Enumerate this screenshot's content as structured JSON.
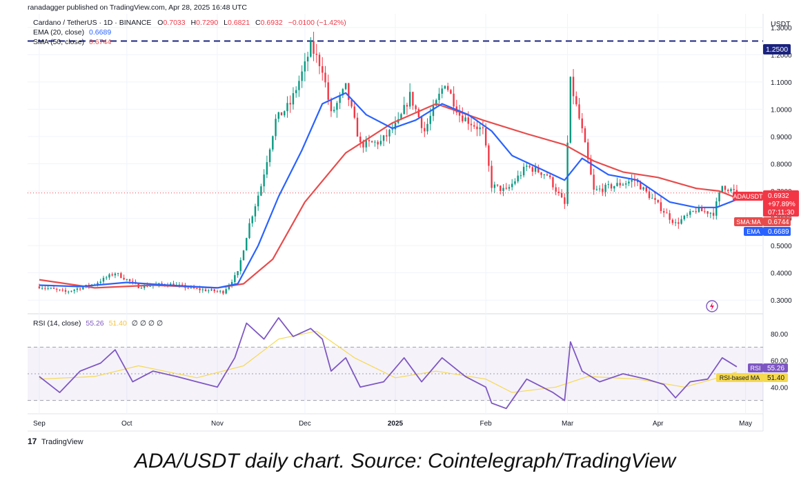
{
  "header": {
    "published_by": "ranadagger published on TradingView.com, Apr 28, 2025 16:48 UTC"
  },
  "legend": {
    "symbol": "Cardano / TetherUS · 1D · BINANCE",
    "o_label": "O",
    "o_value": "0.7033",
    "h_label": "H",
    "h_value": "0.7290",
    "l_label": "L",
    "l_value": "0.6821",
    "c_label": "C",
    "c_value": "0.6932",
    "change": "−0.0100 (−1.42%)",
    "ema_label": "EMA (20, close)",
    "ema_value": "0.6689",
    "sma_label": "SMA (50, close)",
    "sma_value": "0.6744",
    "rsi_label": "RSI (14, close)",
    "rsi_value": "55.26",
    "rsi_ma_value": "51.40",
    "rsi_zeros": "∅ ∅ ∅ ∅"
  },
  "price_axis": {
    "currency": "USDT",
    "ticks": [
      "1.3000",
      "1.2000",
      "1.1000",
      "1.0000",
      "0.9000",
      "0.8000",
      "0.7000",
      "0.6000",
      "0.5000",
      "0.4000",
      "0.3000"
    ],
    "hline_label": "1.2500",
    "price_tag_symbol": "ADAUSDT",
    "price_tag_value": "0.6932",
    "price_tag_change": "+97.89%",
    "price_tag_countdown": "07:11:30",
    "sma_tag_label": "SMA:MA",
    "sma_tag_value": "0.6744",
    "ema_tag_label": "EMA",
    "ema_tag_value": "0.6689"
  },
  "rsi_axis": {
    "ticks": [
      "80.00",
      "60.00",
      "40.00"
    ],
    "rsi_tag_label": "RSI",
    "rsi_tag_value": "55.26",
    "rsi_ma_tag_label": "RSI-based MA",
    "rsi_ma_tag_value": "51.40"
  },
  "time_axis": {
    "ticks": [
      "Sep",
      "Oct",
      "Nov",
      "Dec",
      "2025",
      "Feb",
      "Mar",
      "Apr",
      "May"
    ]
  },
  "footer": {
    "logo_text": "TradingView",
    "logo_mark": "17"
  },
  "caption": "ADA/USDT daily chart. Source: Cointelegraph/TradingView",
  "colors": {
    "up": "#089981",
    "down": "#f23645",
    "ema": "#2962ff",
    "sma": "#e74c4c",
    "rsi": "#7e57c2",
    "rsi_ma": "#f5d94e",
    "hline": "#1a237e"
  },
  "chart_data": {
    "type": "candlestick",
    "symbol": "ADAUSDT",
    "timeframe": "1D",
    "price_range": [
      0.25,
      1.35
    ],
    "horizontal_line": 1.25,
    "last_close": 0.6932,
    "ema20_last": 0.6689,
    "sma50_last": 0.6744,
    "close_path": [
      {
        "x": "2024-09-01",
        "y": 0.35
      },
      {
        "x": "2024-09-10",
        "y": 0.33
      },
      {
        "x": "2024-09-20",
        "y": 0.36
      },
      {
        "x": "2024-09-27",
        "y": 0.4
      },
      {
        "x": "2024-10-05",
        "y": 0.35
      },
      {
        "x": "2024-10-15",
        "y": 0.36
      },
      {
        "x": "2024-10-25",
        "y": 0.34
      },
      {
        "x": "2024-11-03",
        "y": 0.33
      },
      {
        "x": "2024-11-08",
        "y": 0.4
      },
      {
        "x": "2024-11-12",
        "y": 0.58
      },
      {
        "x": "2024-11-16",
        "y": 0.72
      },
      {
        "x": "2024-11-21",
        "y": 0.96
      },
      {
        "x": "2024-11-26",
        "y": 1.02
      },
      {
        "x": "2024-12-01",
        "y": 1.16
      },
      {
        "x": "2024-12-03",
        "y": 1.23
      },
      {
        "x": "2024-12-07",
        "y": 1.15
      },
      {
        "x": "2024-12-10",
        "y": 0.98
      },
      {
        "x": "2024-12-15",
        "y": 1.08
      },
      {
        "x": "2024-12-20",
        "y": 0.87
      },
      {
        "x": "2024-12-27",
        "y": 0.88
      },
      {
        "x": "2025-01-02",
        "y": 0.95
      },
      {
        "x": "2025-01-06",
        "y": 1.05
      },
      {
        "x": "2025-01-11",
        "y": 0.92
      },
      {
        "x": "2025-01-18",
        "y": 1.1
      },
      {
        "x": "2025-01-23",
        "y": 0.98
      },
      {
        "x": "2025-01-31",
        "y": 0.92
      },
      {
        "x": "2025-02-03",
        "y": 0.72
      },
      {
        "x": "2025-02-08",
        "y": 0.7
      },
      {
        "x": "2025-02-15",
        "y": 0.79
      },
      {
        "x": "2025-02-22",
        "y": 0.76
      },
      {
        "x": "2025-02-28",
        "y": 0.65
      },
      {
        "x": "2025-03-02",
        "y": 1.1
      },
      {
        "x": "2025-03-06",
        "y": 0.92
      },
      {
        "x": "2025-03-10",
        "y": 0.7
      },
      {
        "x": "2025-03-17",
        "y": 0.72
      },
      {
        "x": "2025-03-24",
        "y": 0.74
      },
      {
        "x": "2025-03-31",
        "y": 0.66
      },
      {
        "x": "2025-04-07",
        "y": 0.58
      },
      {
        "x": "2025-04-14",
        "y": 0.63
      },
      {
        "x": "2025-04-20",
        "y": 0.62
      },
      {
        "x": "2025-04-23",
        "y": 0.72
      },
      {
        "x": "2025-04-28",
        "y": 0.6932
      }
    ],
    "ema20": [
      {
        "x": "2024-09-01",
        "y": 0.355
      },
      {
        "x": "2024-09-15",
        "y": 0.35
      },
      {
        "x": "2024-10-01",
        "y": 0.365
      },
      {
        "x": "2024-10-15",
        "y": 0.355
      },
      {
        "x": "2024-11-01",
        "y": 0.345
      },
      {
        "x": "2024-11-08",
        "y": 0.36
      },
      {
        "x": "2024-11-15",
        "y": 0.5
      },
      {
        "x": "2024-11-22",
        "y": 0.68
      },
      {
        "x": "2024-11-30",
        "y": 0.85
      },
      {
        "x": "2024-12-07",
        "y": 1.02
      },
      {
        "x": "2024-12-15",
        "y": 1.06
      },
      {
        "x": "2024-12-22",
        "y": 0.98
      },
      {
        "x": "2024-12-31",
        "y": 0.93
      },
      {
        "x": "2025-01-08",
        "y": 0.96
      },
      {
        "x": "2025-01-17",
        "y": 1.02
      },
      {
        "x": "2025-01-26",
        "y": 0.98
      },
      {
        "x": "2025-02-03",
        "y": 0.92
      },
      {
        "x": "2025-02-10",
        "y": 0.83
      },
      {
        "x": "2025-02-20",
        "y": 0.78
      },
      {
        "x": "2025-02-28",
        "y": 0.74
      },
      {
        "x": "2025-03-06",
        "y": 0.82
      },
      {
        "x": "2025-03-15",
        "y": 0.76
      },
      {
        "x": "2025-03-25",
        "y": 0.74
      },
      {
        "x": "2025-04-05",
        "y": 0.66
      },
      {
        "x": "2025-04-14",
        "y": 0.64
      },
      {
        "x": "2025-04-21",
        "y": 0.64
      },
      {
        "x": "2025-04-28",
        "y": 0.6689
      }
    ],
    "sma50": [
      {
        "x": "2024-09-01",
        "y": 0.375
      },
      {
        "x": "2024-09-20",
        "y": 0.345
      },
      {
        "x": "2024-10-10",
        "y": 0.355
      },
      {
        "x": "2024-11-01",
        "y": 0.345
      },
      {
        "x": "2024-11-10",
        "y": 0.36
      },
      {
        "x": "2024-11-20",
        "y": 0.45
      },
      {
        "x": "2024-12-01",
        "y": 0.66
      },
      {
        "x": "2024-12-15",
        "y": 0.84
      },
      {
        "x": "2024-12-31",
        "y": 0.95
      },
      {
        "x": "2025-01-15",
        "y": 1.02
      },
      {
        "x": "2025-01-31",
        "y": 0.96
      },
      {
        "x": "2025-02-15",
        "y": 0.91
      },
      {
        "x": "2025-02-28",
        "y": 0.87
      },
      {
        "x": "2025-03-10",
        "y": 0.81
      },
      {
        "x": "2025-03-20",
        "y": 0.77
      },
      {
        "x": "2025-04-01",
        "y": 0.75
      },
      {
        "x": "2025-04-14",
        "y": 0.71
      },
      {
        "x": "2025-04-22",
        "y": 0.7
      },
      {
        "x": "2025-04-28",
        "y": 0.6744
      }
    ],
    "rsi": {
      "period": 14,
      "last": 55.26,
      "ma_last": 51.4,
      "levels": [
        70,
        50,
        30
      ],
      "ticks": [
        80,
        60,
        40
      ],
      "range": [
        20,
        95
      ],
      "values": [
        {
          "x": "2024-09-01",
          "y": 48
        },
        {
          "x": "2024-09-08",
          "y": 36
        },
        {
          "x": "2024-09-15",
          "y": 52
        },
        {
          "x": "2024-09-22",
          "y": 58
        },
        {
          "x": "2024-09-27",
          "y": 68
        },
        {
          "x": "2024-10-03",
          "y": 44
        },
        {
          "x": "2024-10-10",
          "y": 52
        },
        {
          "x": "2024-10-18",
          "y": 48
        },
        {
          "x": "2024-10-25",
          "y": 44
        },
        {
          "x": "2024-11-01",
          "y": 40
        },
        {
          "x": "2024-11-07",
          "y": 62
        },
        {
          "x": "2024-11-11",
          "y": 88
        },
        {
          "x": "2024-11-17",
          "y": 76
        },
        {
          "x": "2024-11-22",
          "y": 92
        },
        {
          "x": "2024-11-27",
          "y": 78
        },
        {
          "x": "2024-12-03",
          "y": 84
        },
        {
          "x": "2024-12-07",
          "y": 76
        },
        {
          "x": "2024-12-10",
          "y": 52
        },
        {
          "x": "2024-12-15",
          "y": 62
        },
        {
          "x": "2024-12-20",
          "y": 40
        },
        {
          "x": "2024-12-28",
          "y": 44
        },
        {
          "x": "2025-01-04",
          "y": 62
        },
        {
          "x": "2025-01-10",
          "y": 44
        },
        {
          "x": "2025-01-17",
          "y": 62
        },
        {
          "x": "2025-01-25",
          "y": 48
        },
        {
          "x": "2025-02-01",
          "y": 40
        },
        {
          "x": "2025-02-03",
          "y": 28
        },
        {
          "x": "2025-02-08",
          "y": 24
        },
        {
          "x": "2025-02-15",
          "y": 46
        },
        {
          "x": "2025-02-24",
          "y": 36
        },
        {
          "x": "2025-02-28",
          "y": 30
        },
        {
          "x": "2025-03-02",
          "y": 74
        },
        {
          "x": "2025-03-06",
          "y": 52
        },
        {
          "x": "2025-03-12",
          "y": 44
        },
        {
          "x": "2025-03-20",
          "y": 50
        },
        {
          "x": "2025-03-28",
          "y": 46
        },
        {
          "x": "2025-04-03",
          "y": 42
        },
        {
          "x": "2025-04-07",
          "y": 32
        },
        {
          "x": "2025-04-12",
          "y": 44
        },
        {
          "x": "2025-04-18",
          "y": 46
        },
        {
          "x": "2025-04-23",
          "y": 62
        },
        {
          "x": "2025-04-28",
          "y": 55.26
        }
      ],
      "ma_values": [
        {
          "x": "2024-09-01",
          "y": 46
        },
        {
          "x": "2024-09-20",
          "y": 48
        },
        {
          "x": "2024-10-05",
          "y": 56
        },
        {
          "x": "2024-10-25",
          "y": 47
        },
        {
          "x": "2024-11-10",
          "y": 56
        },
        {
          "x": "2024-11-22",
          "y": 76
        },
        {
          "x": "2024-12-05",
          "y": 82
        },
        {
          "x": "2024-12-18",
          "y": 62
        },
        {
          "x": "2025-01-01",
          "y": 47
        },
        {
          "x": "2025-01-15",
          "y": 52
        },
        {
          "x": "2025-02-01",
          "y": 46
        },
        {
          "x": "2025-02-10",
          "y": 36
        },
        {
          "x": "2025-02-25",
          "y": 40
        },
        {
          "x": "2025-03-08",
          "y": 48
        },
        {
          "x": "2025-03-25",
          "y": 46
        },
        {
          "x": "2025-04-10",
          "y": 40
        },
        {
          "x": "2025-04-20",
          "y": 46
        },
        {
          "x": "2025-04-28",
          "y": 51.4
        }
      ]
    }
  }
}
